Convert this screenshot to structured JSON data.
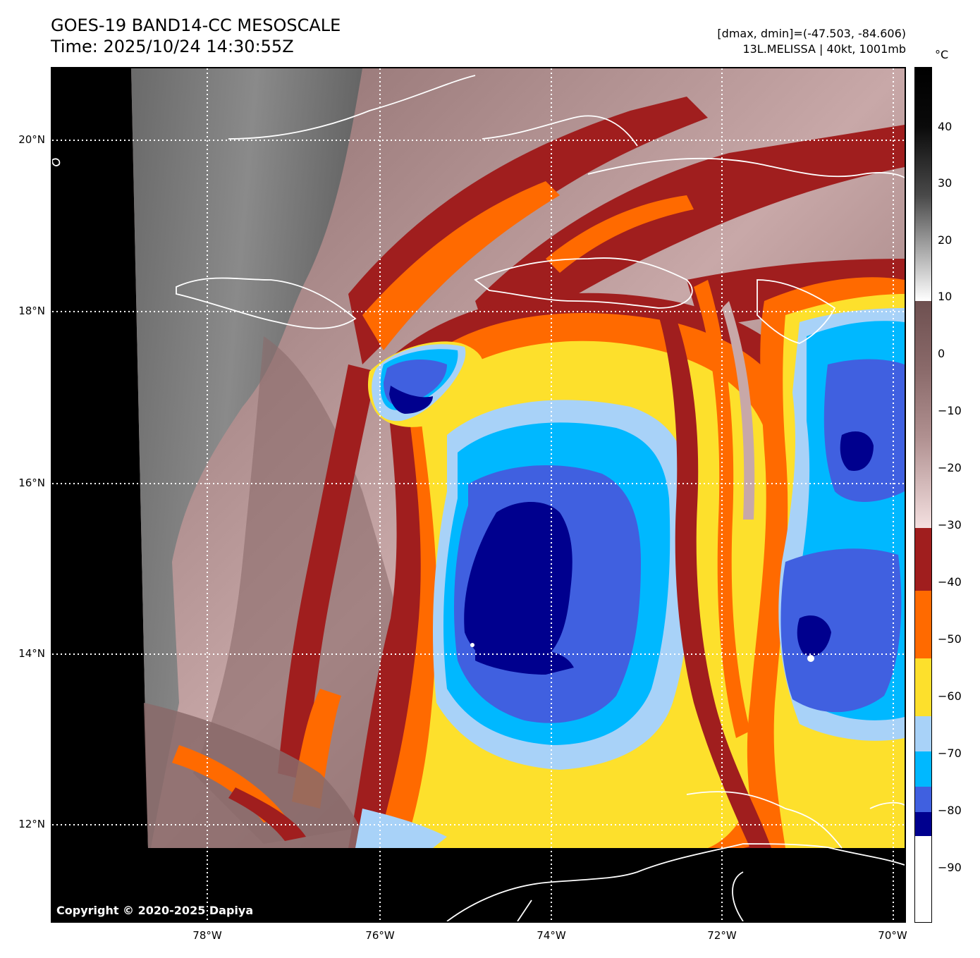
{
  "header": {
    "title_line1": "GOES-19 BAND14-CC MESOSCALE",
    "title_line2": "Time: 2025/10/24 14:30:55Z",
    "range_text": "[dmax, dmin]=(-47.503, -84.606)",
    "storm_text": "13L.MELISSA | 40kt, 1001mb"
  },
  "map": {
    "copyright": "Copyright © 2020-2025 Dapiya",
    "lat_labels": [
      "20°N",
      "18°N",
      "16°N",
      "14°N",
      "12°N"
    ],
    "lon_labels": [
      "78°W",
      "76°W",
      "74°W",
      "72°W",
      "70°W"
    ],
    "gridlines": "dotted-white",
    "coastlines": "white"
  },
  "colorbar": {
    "unit": "°C",
    "ticks": [
      "40",
      "30",
      "20",
      "10",
      "0",
      "−10",
      "−20",
      "−30",
      "−40",
      "−50",
      "−60",
      "−70",
      "−80",
      "−90"
    ],
    "colors": {
      "warm_gray_top": "#000000",
      "gray_mid": "#808080",
      "white_10": "#ffffff",
      "brown_0": "#7a5a5a",
      "pink_minus30": "#f4e0e0",
      "darkred": "#a01e1e",
      "orange": "#ff6a00",
      "yellow": "#fde02c",
      "lightblue": "#a8d2f8",
      "cyan": "#00b8ff",
      "royalblue": "#4060e0",
      "navy": "#00008e",
      "white_min": "#ffffff"
    }
  }
}
